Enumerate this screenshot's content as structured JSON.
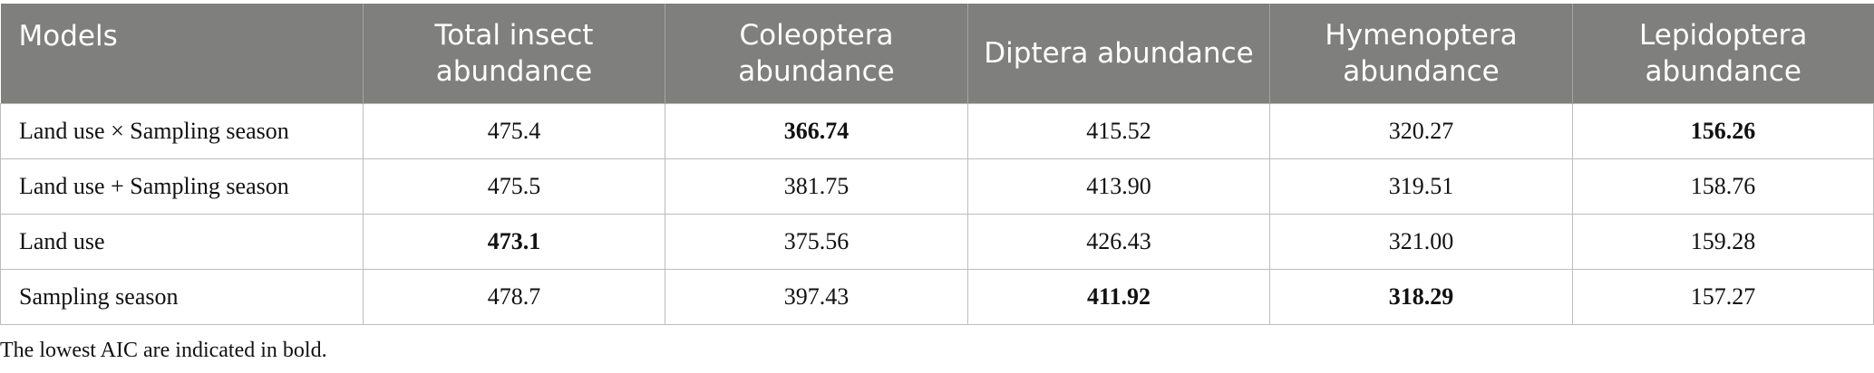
{
  "table": {
    "header": [
      "Models",
      "Total insect abundance",
      "Coleoptera abundance",
      "Diptera abundance",
      "Hymenoptera abundance",
      "Lepidoptera abundance"
    ],
    "rows": [
      [
        {
          "text": "Land use × Sampling season",
          "bold": false
        },
        {
          "text": "475.4",
          "bold": false
        },
        {
          "text": "366.74",
          "bold": true
        },
        {
          "text": "415.52",
          "bold": false
        },
        {
          "text": "320.27",
          "bold": false
        },
        {
          "text": "156.26",
          "bold": true
        }
      ],
      [
        {
          "text": "Land use + Sampling season",
          "bold": false
        },
        {
          "text": "475.5",
          "bold": false
        },
        {
          "text": "381.75",
          "bold": false
        },
        {
          "text": "413.90",
          "bold": false
        },
        {
          "text": "319.51",
          "bold": false
        },
        {
          "text": "158.76",
          "bold": false
        }
      ],
      [
        {
          "text": "Land use",
          "bold": false
        },
        {
          "text": "473.1",
          "bold": true
        },
        {
          "text": "375.56",
          "bold": false
        },
        {
          "text": "426.43",
          "bold": false
        },
        {
          "text": "321.00",
          "bold": false
        },
        {
          "text": "159.28",
          "bold": false
        }
      ],
      [
        {
          "text": "Sampling season",
          "bold": false
        },
        {
          "text": "478.7",
          "bold": false
        },
        {
          "text": "397.43",
          "bold": false
        },
        {
          "text": "411.92",
          "bold": true
        },
        {
          "text": "318.29",
          "bold": true
        },
        {
          "text": "157.27",
          "bold": false
        }
      ]
    ],
    "footnote": "The lowest AIC are indicated in bold."
  }
}
